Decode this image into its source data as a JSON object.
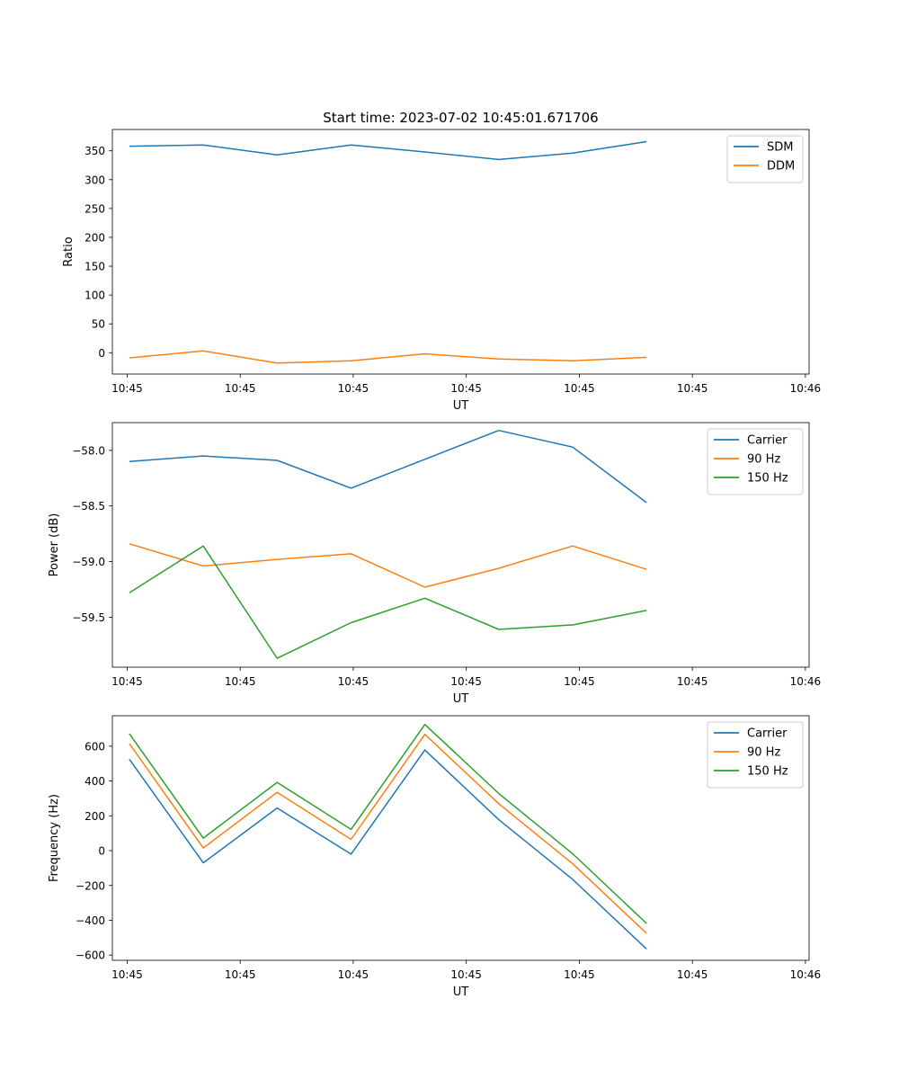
{
  "figure_title": "Start time: 2023-07-02 10:45:01.671706",
  "colors": {
    "blue": "#1f77b4",
    "orange": "#ff7f0e",
    "green": "#2ca02c"
  },
  "chart_data": [
    {
      "type": "line",
      "title": "Start time: 2023-07-02 10:45:01.671706",
      "xlabel": "UT",
      "ylabel": "Ratio",
      "x": [
        1,
        2,
        3,
        4,
        5,
        6,
        7,
        8
      ],
      "xlim": [
        0.77,
        10.2
      ],
      "xticks": [
        {
          "v": 0.97,
          "label": "10:45"
        },
        {
          "v": 2.5,
          "label": "10:45"
        },
        {
          "v": 4.03,
          "label": "10:45"
        },
        {
          "v": 5.56,
          "label": "10:45"
        },
        {
          "v": 7.09,
          "label": "10:45"
        },
        {
          "v": 8.62,
          "label": "10:45"
        },
        {
          "v": 10.15,
          "label": "10:46"
        }
      ],
      "ylim": [
        -37,
        387
      ],
      "yticks": [
        0,
        50,
        100,
        150,
        200,
        250,
        300,
        350
      ],
      "legend": "upper-right",
      "series": [
        {
          "name": "SDM",
          "color": "#1f77b4",
          "values": [
            358,
            360,
            343,
            360,
            348,
            335,
            346,
            366
          ]
        },
        {
          "name": "DDM",
          "color": "#ff7f0e",
          "values": [
            -9,
            3,
            -18,
            -14,
            -2,
            -11,
            -14,
            -8
          ]
        }
      ]
    },
    {
      "type": "line",
      "xlabel": "UT",
      "ylabel": "Power (dB)",
      "x": [
        1,
        2,
        3,
        4,
        5,
        6,
        7,
        8
      ],
      "xlim": [
        0.77,
        10.2
      ],
      "xticks": [
        {
          "v": 0.97,
          "label": "10:45"
        },
        {
          "v": 2.5,
          "label": "10:45"
        },
        {
          "v": 4.03,
          "label": "10:45"
        },
        {
          "v": 5.56,
          "label": "10:45"
        },
        {
          "v": 7.09,
          "label": "10:45"
        },
        {
          "v": 8.62,
          "label": "10:45"
        },
        {
          "v": 10.15,
          "label": "10:46"
        }
      ],
      "ylim": [
        -59.95,
        -57.75
      ],
      "yticks": [
        -58.0,
        -58.5,
        -59.0,
        -59.5
      ],
      "legend": "upper-right",
      "series": [
        {
          "name": "Carrier",
          "color": "#1f77b4",
          "values": [
            -58.1,
            -58.05,
            -58.09,
            -58.34,
            -58.08,
            -57.82,
            -57.97,
            -58.47
          ]
        },
        {
          "name": "90 Hz",
          "color": "#ff7f0e",
          "values": [
            -58.84,
            -59.04,
            -58.98,
            -58.93,
            -59.23,
            -59.06,
            -58.86,
            -59.07
          ]
        },
        {
          "name": "150 Hz",
          "color": "#2ca02c",
          "values": [
            -59.28,
            -58.86,
            -59.87,
            -59.55,
            -59.33,
            -59.61,
            -59.57,
            -59.44
          ]
        }
      ]
    },
    {
      "type": "line",
      "xlabel": "UT",
      "ylabel": "Frequency (Hz)",
      "x": [
        1,
        2,
        3,
        4,
        5,
        6,
        7,
        8
      ],
      "xlim": [
        0.77,
        10.2
      ],
      "xticks": [
        {
          "v": 0.97,
          "label": "10:45"
        },
        {
          "v": 2.5,
          "label": "10:45"
        },
        {
          "v": 4.03,
          "label": "10:45"
        },
        {
          "v": 5.56,
          "label": "10:45"
        },
        {
          "v": 7.09,
          "label": "10:45"
        },
        {
          "v": 8.62,
          "label": "10:45"
        },
        {
          "v": 10.15,
          "label": "10:46"
        }
      ],
      "ylim": [
        -630,
        775
      ],
      "yticks": [
        -600,
        -400,
        -200,
        0,
        200,
        400,
        600
      ],
      "legend": "upper-right",
      "series": [
        {
          "name": "Carrier",
          "color": "#1f77b4",
          "values": [
            525,
            -70,
            245,
            -20,
            578,
            178,
            -165,
            -565
          ]
        },
        {
          "name": "90 Hz",
          "color": "#ff7f0e",
          "values": [
            615,
            15,
            335,
            65,
            668,
            270,
            -75,
            -475
          ]
        },
        {
          "name": "150 Hz",
          "color": "#2ca02c",
          "values": [
            672,
            72,
            392,
            122,
            725,
            328,
            -18,
            -418
          ]
        }
      ]
    }
  ]
}
